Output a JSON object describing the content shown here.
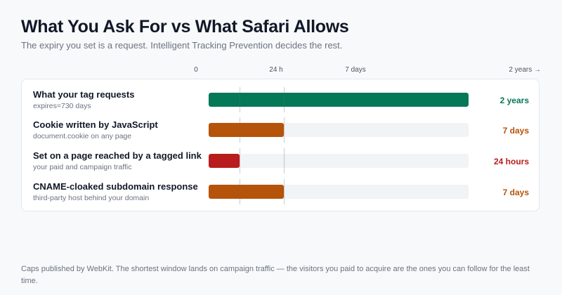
{
  "header": {
    "title": "What You Ask For vs What Safari Allows",
    "subtitle": "The expiry you set is a request. Intelligent Tracking Prevention decides the rest."
  },
  "axis": {
    "ticks": [
      "0",
      "24 h",
      "7 days"
    ],
    "end_label": "2 years →"
  },
  "chart_data": {
    "type": "bar",
    "orientation": "horizontal",
    "title": "What You Ask For vs What Safari Allows",
    "subtitle": "The expiry you set is a request. Intelligent Tracking Prevention decides the rest.",
    "scale": "piecewise",
    "x_ticks": [
      "0",
      "24 h",
      "7 days",
      "2 years →"
    ],
    "categories": [
      "What your tag requests",
      "Cookie written by JavaScript",
      "Set on a page reached by a tagged link",
      "CNAME-cloaked subdomain response"
    ],
    "sublabels": [
      "expires=730 days",
      "document.cookie on any page",
      "your paid and campaign traffic",
      "third-party host behind your domain"
    ],
    "values_days": [
      730,
      7,
      1,
      7
    ],
    "value_labels": [
      "2 years",
      "7 days",
      "24 hours",
      "7 days"
    ],
    "colors": [
      "#047857",
      "#b45309",
      "#b91c1c",
      "#b45309"
    ],
    "grid": true
  },
  "footnote": "Caps published by WebKit. The shortest window lands on campaign traffic — the visitors you paid to acquire are the ones you can follow for the least time."
}
